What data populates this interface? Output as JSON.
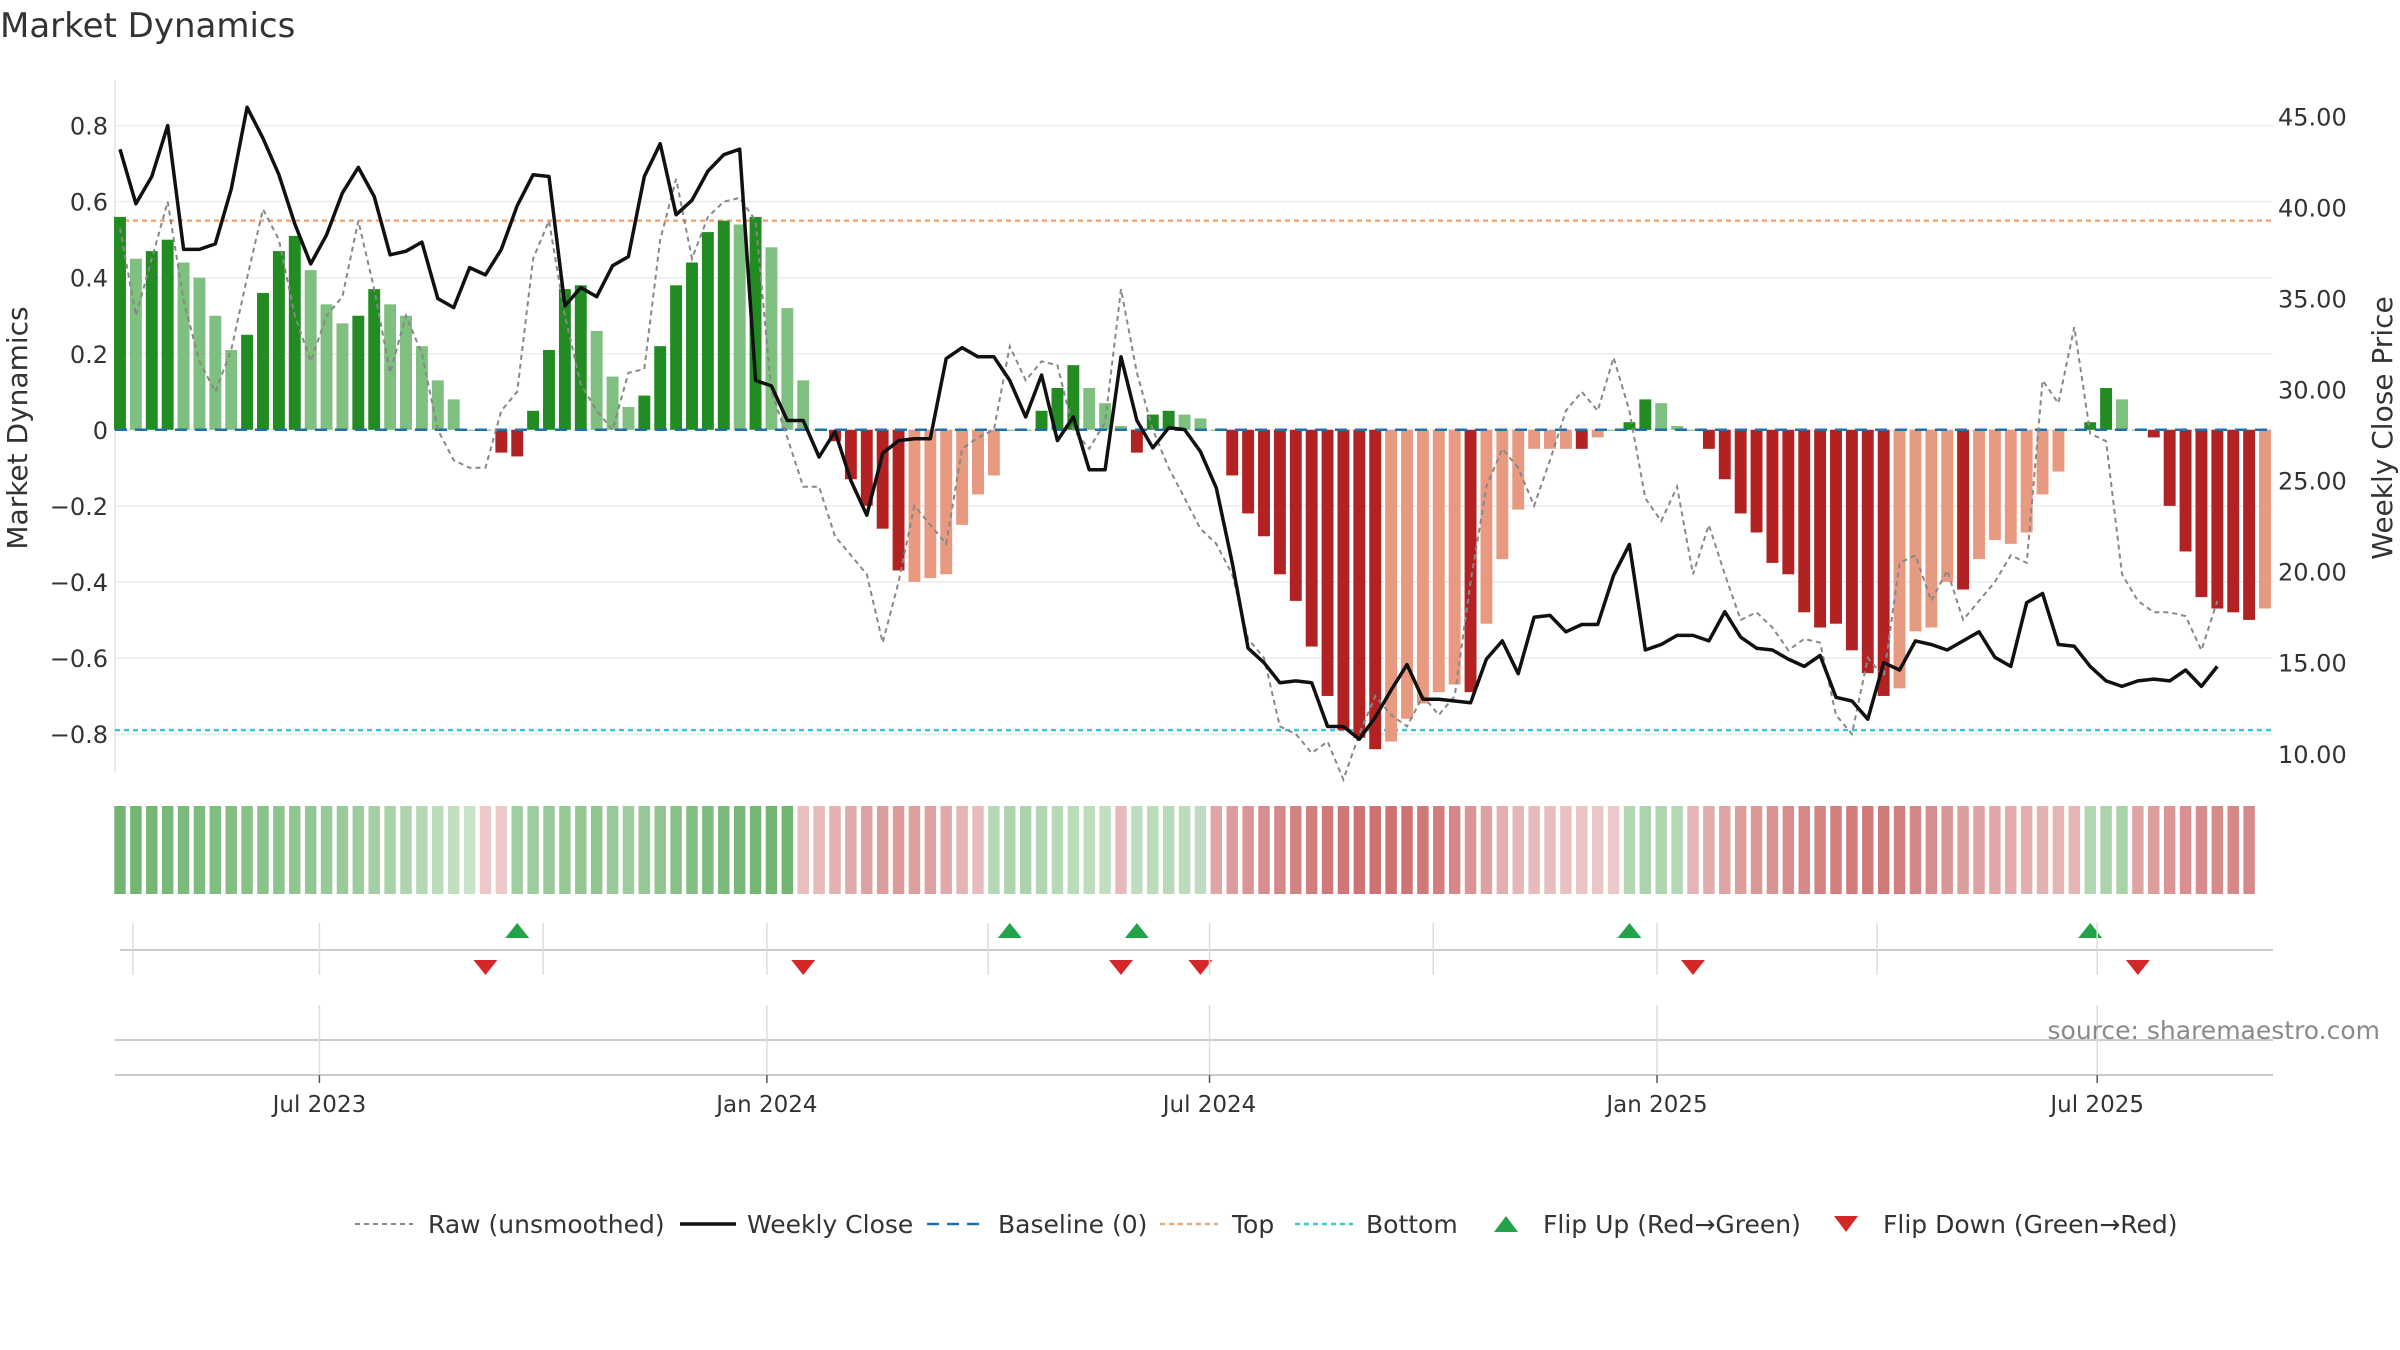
{
  "chart_data": {
    "type": "bar",
    "title": "Market Dynamics",
    "ylabel": "Market Dynamics",
    "ylabel_right": "Weekly Close Price",
    "ylim": [
      -0.9,
      0.92
    ],
    "ylim_right": [
      9.0,
      47.0
    ],
    "yticks": [
      -0.8,
      -0.6,
      -0.4,
      -0.2,
      0,
      0.2,
      0.4,
      0.6,
      0.8
    ],
    "ytick_labels": [
      "−0.8",
      "−0.6",
      "−0.4",
      "−0.2",
      "0",
      "0.2",
      "0.4",
      "0.6",
      "0.8"
    ],
    "yticks_right": [
      10,
      15,
      20,
      25,
      30,
      35,
      40,
      45
    ],
    "ytick_labels_right": [
      "10.00",
      "15.00",
      "20.00",
      "25.00",
      "30.00",
      "35.00",
      "40.00",
      "45.00"
    ],
    "x_start": "2023-04-10",
    "x_end": "2025-09-08",
    "xtick_dates": [
      "2023-07-01",
      "2024-01-01",
      "2024-07-01",
      "2025-01-01",
      "2025-07-01"
    ],
    "xtick_labels": [
      "Jul 2023",
      "Jan 2024",
      "Jul 2024",
      "Jan 2025",
      "Jul 2025"
    ],
    "top_level": 0.55,
    "bottom_level": -0.79,
    "grid": true,
    "legend_position": "bottom",
    "source": "source: sharemaestro.com",
    "legend": [
      {
        "key": "raw",
        "label": "Raw (unsmoothed)"
      },
      {
        "key": "close",
        "label": "Weekly Close"
      },
      {
        "key": "baseline",
        "label": "Baseline (0)"
      },
      {
        "key": "top",
        "label": "Top"
      },
      {
        "key": "bottom",
        "label": "Bottom"
      },
      {
        "key": "flipup",
        "label": "Flip Up (Red→Green)"
      },
      {
        "key": "flipdown",
        "label": "Flip Down (Green→Red)"
      }
    ],
    "colors": {
      "strong_up": "#228b22",
      "weak_up": "#7fbf7f",
      "strong_down": "#b22222",
      "weak_down": "#e89a80",
      "raw": "#888888",
      "close": "#111111",
      "baseline": "#1f6fa8",
      "top": "#f0a878",
      "bottom": "#3cc6d8",
      "flip_up": "#22a34a",
      "flip_down": "#d62728"
    },
    "series": [
      {
        "name": "Market Dynamics",
        "values": [
          0.56,
          0.45,
          0.47,
          0.5,
          0.44,
          0.4,
          0.3,
          0.21,
          0.25,
          0.36,
          0.47,
          0.51,
          0.42,
          0.33,
          0.28,
          0.3,
          0.37,
          0.33,
          0.3,
          0.22,
          0.13,
          0.08,
          0.0,
          0.0,
          -0.06,
          -0.07,
          0.05,
          0.21,
          0.37,
          0.38,
          0.26,
          0.14,
          0.06,
          0.09,
          0.22,
          0.38,
          0.44,
          0.52,
          0.55,
          0.54,
          0.56,
          0.48,
          0.32,
          0.13,
          0.0,
          -0.03,
          -0.13,
          -0.2,
          -0.26,
          -0.37,
          -0.4,
          -0.39,
          -0.38,
          -0.25,
          -0.17,
          -0.12,
          0.0,
          0.0,
          0.05,
          0.11,
          0.17,
          0.11,
          0.07,
          0.01,
          -0.06,
          0.04,
          0.05,
          0.04,
          0.03,
          0.0,
          -0.12,
          -0.22,
          -0.28,
          -0.38,
          -0.45,
          -0.57,
          -0.7,
          -0.79,
          -0.81,
          -0.84,
          -0.82,
          -0.76,
          -0.72,
          -0.69,
          -0.67,
          -0.69,
          -0.51,
          -0.34,
          -0.21,
          -0.05,
          -0.05,
          -0.05,
          -0.05,
          -0.02,
          0.0,
          0.02,
          0.08,
          0.07,
          0.01,
          0.0,
          -0.05,
          -0.13,
          -0.22,
          -0.27,
          -0.35,
          -0.38,
          -0.48,
          -0.52,
          -0.51,
          -0.58,
          -0.64,
          -0.7,
          -0.68,
          -0.53,
          -0.52,
          -0.4,
          -0.42,
          -0.34,
          -0.29,
          -0.3,
          -0.27,
          -0.17,
          -0.11,
          0.0,
          0.02,
          0.11,
          0.08,
          0.0,
          -0.02,
          -0.2,
          -0.32,
          -0.44,
          -0.47,
          -0.48,
          -0.5,
          -0.47
        ],
        "strength": [
          "strong",
          "weak",
          "strong",
          "strong",
          "weak",
          "weak",
          "weak",
          "weak",
          "strong",
          "strong",
          "strong",
          "strong",
          "weak",
          "weak",
          "weak",
          "strong",
          "strong",
          "weak",
          "weak",
          "weak",
          "weak",
          "weak",
          "weak",
          "weak",
          "strong",
          "strong",
          "strong",
          "strong",
          "strong",
          "strong",
          "weak",
          "weak",
          "weak",
          "strong",
          "strong",
          "strong",
          "strong",
          "strong",
          "strong",
          "weak",
          "strong",
          "weak",
          "weak",
          "weak",
          "weak",
          "strong",
          "strong",
          "strong",
          "strong",
          "strong",
          "weak",
          "weak",
          "weak",
          "weak",
          "weak",
          "weak",
          "weak",
          "weak",
          "strong",
          "strong",
          "strong",
          "weak",
          "weak",
          "weak",
          "strong",
          "strong",
          "strong",
          "weak",
          "weak",
          "weak",
          "strong",
          "strong",
          "strong",
          "strong",
          "strong",
          "strong",
          "strong",
          "strong",
          "strong",
          "strong",
          "weak",
          "weak",
          "weak",
          "weak",
          "weak",
          "strong",
          "weak",
          "weak",
          "weak",
          "weak",
          "weak",
          "weak",
          "strong",
          "weak",
          "weak",
          "strong",
          "strong",
          "weak",
          "weak",
          "weak",
          "strong",
          "strong",
          "strong",
          "strong",
          "strong",
          "strong",
          "strong",
          "strong",
          "strong",
          "strong",
          "strong",
          "strong",
          "weak",
          "weak",
          "weak",
          "weak",
          "strong",
          "weak",
          "weak",
          "weak",
          "weak",
          "weak",
          "weak",
          "weak",
          "strong",
          "strong",
          "weak",
          "weak",
          "strong",
          "strong",
          "strong",
          "strong",
          "strong",
          "strong",
          "strong",
          "weak"
        ]
      },
      {
        "name": "Raw (unsmoothed)",
        "values": [
          0.53,
          0.3,
          0.45,
          0.6,
          0.34,
          0.18,
          0.1,
          0.21,
          0.4,
          0.58,
          0.5,
          0.3,
          0.18,
          0.3,
          0.35,
          0.55,
          0.37,
          0.15,
          0.3,
          0.2,
          0.0,
          -0.08,
          -0.1,
          -0.1,
          0.05,
          0.1,
          0.45,
          0.55,
          0.3,
          0.12,
          0.05,
          0.0,
          0.15,
          0.16,
          0.5,
          0.66,
          0.45,
          0.56,
          0.6,
          0.61,
          0.55,
          0.1,
          -0.02,
          -0.15,
          -0.15,
          -0.28,
          -0.33,
          -0.38,
          -0.56,
          -0.4,
          -0.2,
          -0.25,
          -0.3,
          -0.05,
          -0.02,
          0.0,
          0.22,
          0.13,
          0.18,
          0.17,
          0.0,
          -0.05,
          0.02,
          0.37,
          0.15,
          0.0,
          -0.1,
          -0.18,
          -0.26,
          -0.3,
          -0.38,
          -0.55,
          -0.6,
          -0.78,
          -0.8,
          -0.85,
          -0.82,
          -0.92,
          -0.8,
          -0.7,
          -0.75,
          -0.78,
          -0.7,
          -0.75,
          -0.7,
          -0.4,
          -0.15,
          -0.05,
          -0.1,
          -0.2,
          -0.08,
          0.05,
          0.1,
          0.05,
          0.19,
          0.05,
          -0.18,
          -0.24,
          -0.15,
          -0.38,
          -0.25,
          -0.38,
          -0.5,
          -0.48,
          -0.52,
          -0.58,
          -0.55,
          -0.56,
          -0.75,
          -0.8,
          -0.6,
          -0.65,
          -0.35,
          -0.33,
          -0.45,
          -0.37,
          -0.5,
          -0.45,
          -0.4,
          -0.33,
          -0.35,
          0.13,
          0.07,
          0.27,
          -0.01,
          -0.03,
          -0.38,
          -0.45,
          -0.48,
          -0.48,
          -0.49,
          -0.58,
          -0.45
        ]
      },
      {
        "name": "Weekly Close",
        "values": [
          43.2,
          40.2,
          41.7,
          44.5,
          37.7,
          37.7,
          38.0,
          41.0,
          45.5,
          43.8,
          41.8,
          39.1,
          36.9,
          38.5,
          40.8,
          42.2,
          40.6,
          37.4,
          37.6,
          38.1,
          35.0,
          34.5,
          36.7,
          36.3,
          37.7,
          40.1,
          41.8,
          41.7,
          34.6,
          35.6,
          35.1,
          36.8,
          37.3,
          41.7,
          43.5,
          39.6,
          40.4,
          42.0,
          42.9,
          43.2,
          30.5,
          30.2,
          28.3,
          28.3,
          26.3,
          27.7,
          25.0,
          23.1,
          26.5,
          27.2,
          27.3,
          27.3,
          31.7,
          32.3,
          31.8,
          31.8,
          30.5,
          28.5,
          30.8,
          27.2,
          28.5,
          25.6,
          25.6,
          31.8,
          28.3,
          26.8,
          27.9,
          27.8,
          26.6,
          24.6,
          20.5,
          15.8,
          15.0,
          13.9,
          14.0,
          13.9,
          11.5,
          11.5,
          10.8,
          12.0,
          13.5,
          14.9,
          13.0,
          13.0,
          12.9,
          12.8,
          15.2,
          16.2,
          14.4,
          17.5,
          17.6,
          16.7,
          17.1,
          17.1,
          19.8,
          21.5,
          15.7,
          16.0,
          16.5,
          16.5,
          16.2,
          17.8,
          16.4,
          15.8,
          15.7,
          15.2,
          14.8,
          15.4,
          13.1,
          12.9,
          11.9,
          15.0,
          14.6,
          16.2,
          16.0,
          15.7,
          16.2,
          16.7,
          15.3,
          14.8,
          18.3,
          18.8,
          16.0,
          15.9,
          14.8,
          14.0,
          13.7,
          14.0,
          14.1,
          14.0,
          14.6,
          13.7,
          14.8
        ]
      }
    ],
    "trend_strip": {
      "state": [
        "up",
        "up",
        "up",
        "up",
        "up",
        "up",
        "up",
        "up",
        "up",
        "up",
        "up",
        "up",
        "up",
        "up",
        "up",
        "up",
        "up",
        "up",
        "up",
        "up",
        "up",
        "up",
        "up",
        "down",
        "down",
        "up",
        "up",
        "up",
        "up",
        "up",
        "up",
        "up",
        "up",
        "up",
        "up",
        "up",
        "up",
        "up",
        "up",
        "up",
        "up",
        "up",
        "up",
        "down",
        "down",
        "down",
        "down",
        "down",
        "down",
        "down",
        "down",
        "down",
        "down",
        "down",
        "down",
        "up",
        "up",
        "up",
        "up",
        "up",
        "up",
        "up",
        "up",
        "down",
        "up",
        "up",
        "up",
        "up",
        "up",
        "down",
        "down",
        "down",
        "down",
        "down",
        "down",
        "down",
        "down",
        "down",
        "down",
        "down",
        "down",
        "down",
        "down",
        "down",
        "down",
        "down",
        "down",
        "down",
        "down",
        "down",
        "down",
        "down",
        "down",
        "down",
        "down",
        "up",
        "up",
        "up",
        "up",
        "down",
        "down",
        "down",
        "down",
        "down",
        "down",
        "down",
        "down",
        "down",
        "down",
        "down",
        "down",
        "down",
        "down",
        "down",
        "down",
        "down",
        "down",
        "down",
        "down",
        "down",
        "down",
        "down",
        "down",
        "down",
        "up",
        "up",
        "up",
        "down",
        "down",
        "down",
        "down",
        "down",
        "down",
        "down",
        "down"
      ],
      "intensity": [
        0.88,
        0.88,
        0.86,
        0.85,
        0.82,
        0.8,
        0.78,
        0.75,
        0.72,
        0.7,
        0.68,
        0.66,
        0.64,
        0.6,
        0.58,
        0.55,
        0.5,
        0.46,
        0.42,
        0.38,
        0.32,
        0.28,
        0.22,
        0.22,
        0.22,
        0.52,
        0.56,
        0.6,
        0.62,
        0.64,
        0.66,
        0.6,
        0.55,
        0.62,
        0.66,
        0.72,
        0.76,
        0.8,
        0.82,
        0.84,
        0.86,
        0.88,
        0.88,
        0.3,
        0.34,
        0.4,
        0.46,
        0.52,
        0.56,
        0.58,
        0.55,
        0.52,
        0.46,
        0.38,
        0.32,
        0.38,
        0.42,
        0.44,
        0.4,
        0.36,
        0.32,
        0.3,
        0.28,
        0.35,
        0.3,
        0.32,
        0.34,
        0.32,
        0.3,
        0.5,
        0.56,
        0.62,
        0.68,
        0.72,
        0.76,
        0.8,
        0.84,
        0.86,
        0.88,
        0.9,
        0.9,
        0.88,
        0.84,
        0.8,
        0.72,
        0.62,
        0.52,
        0.42,
        0.36,
        0.32,
        0.3,
        0.28,
        0.26,
        0.24,
        0.22,
        0.4,
        0.44,
        0.42,
        0.38,
        0.38,
        0.44,
        0.5,
        0.56,
        0.6,
        0.64,
        0.68,
        0.72,
        0.76,
        0.8,
        0.82,
        0.84,
        0.84,
        0.8,
        0.74,
        0.68,
        0.62,
        0.56,
        0.52,
        0.48,
        0.44,
        0.42,
        0.4,
        0.38,
        0.36,
        0.4,
        0.44,
        0.46,
        0.5,
        0.56,
        0.62,
        0.66,
        0.68,
        0.7,
        0.72,
        0.72
      ]
    },
    "flips": {
      "up": [
        25,
        56,
        64,
        95,
        124
      ],
      "down": [
        23,
        43,
        63,
        68,
        99,
        127
      ]
    }
  }
}
